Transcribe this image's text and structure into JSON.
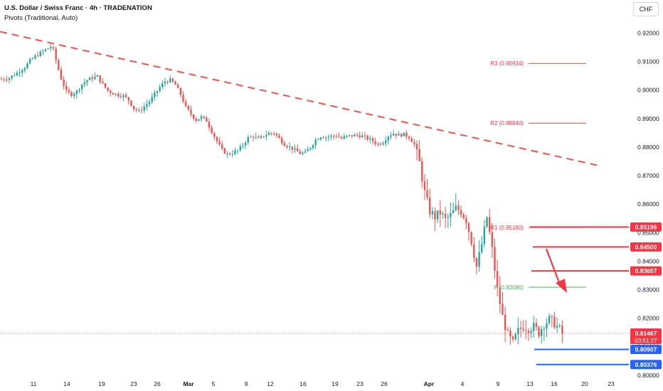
{
  "header": {
    "title": "U.S. Dollar / Swiss Franc · 4h · TRADENATION",
    "indicator": "Pivots (Traditional, Auto)",
    "currency": "CHF"
  },
  "colors": {
    "up": "#26a69a",
    "down": "#ef5350",
    "trendline": "#ef5350",
    "pivot_resistance": "#f23645",
    "pivot_main": "#4caf50",
    "support": "#2962ff",
    "resistance": "#f23645",
    "last_price": "#f23645",
    "axis_text": "#131722"
  },
  "chart_data": {
    "type": "candlestick",
    "y_axis": {
      "ticks": [
        "0.92000",
        "0.91000",
        "0.90000",
        "0.89000",
        "0.88000",
        "0.87000",
        "0.86000",
        "0.85000",
        "0.84000",
        "0.83000",
        "0.82000",
        "0.81000",
        "0.80000"
      ],
      "ylim": [
        0.79996,
        0.92311
      ]
    },
    "x_axis": {
      "labels": [
        "11",
        "14",
        "19",
        "23",
        "26",
        "Mar",
        "5",
        "9",
        "12",
        "16",
        "19",
        "23",
        "26",
        "Apr",
        "4",
        "9",
        "13",
        "16",
        "20",
        "23"
      ]
    },
    "pivot_levels": [
      {
        "label": "R3",
        "value": "0.90934"
      },
      {
        "label": "R2",
        "value": "0.88840"
      },
      {
        "label": "R1",
        "value": "0.85180"
      },
      {
        "label": "P",
        "value": "0.83086"
      }
    ],
    "price_labels": [
      {
        "value": "0.85196",
        "kind": "resistance"
      },
      {
        "value": "0.84500",
        "kind": "resistance"
      },
      {
        "value": "0.83657",
        "kind": "resistance"
      },
      {
        "value": "0.81467",
        "kind": "last"
      },
      {
        "value": "0.80907",
        "kind": "support"
      },
      {
        "value": "0.80376",
        "kind": "support"
      }
    ],
    "last_price": {
      "value": "0.81467",
      "countdown": "03:51:27"
    },
    "trendline": {
      "start": 0.9205,
      "end": 0.8736
    },
    "path": [
      [
        0,
        0.9038
      ],
      [
        3,
        0.9043
      ],
      [
        6,
        0.906
      ],
      [
        9,
        0.908
      ],
      [
        11,
        0.9103
      ],
      [
        13,
        0.9118
      ],
      [
        15,
        0.913
      ],
      [
        17,
        0.9142
      ],
      [
        19,
        0.9152
      ],
      [
        20,
        0.914
      ],
      [
        21,
        0.9105
      ],
      [
        23,
        0.904
      ],
      [
        25,
        0.8995
      ],
      [
        27,
        0.8985
      ],
      [
        29,
        0.8995
      ],
      [
        31,
        0.902
      ],
      [
        33,
        0.9035
      ],
      [
        35,
        0.9043
      ],
      [
        37,
        0.9048
      ],
      [
        39,
        0.902
      ],
      [
        41,
        0.8998
      ],
      [
        43,
        0.8988
      ],
      [
        45,
        0.8983
      ],
      [
        47,
        0.898
      ],
      [
        49,
        0.8965
      ],
      [
        51,
        0.8935
      ],
      [
        53,
        0.8925
      ],
      [
        55,
        0.8942
      ],
      [
        57,
        0.896
      ],
      [
        59,
        0.8985
      ],
      [
        61,
        0.901
      ],
      [
        63,
        0.903
      ],
      [
        65,
        0.9035
      ],
      [
        67,
        0.9018
      ],
      [
        69,
        0.8985
      ],
      [
        71,
        0.894
      ],
      [
        73,
        0.8915
      ],
      [
        75,
        0.8895
      ],
      [
        77,
        0.8905
      ],
      [
        79,
        0.8892
      ],
      [
        81,
        0.8855
      ],
      [
        83,
        0.882
      ],
      [
        85,
        0.879
      ],
      [
        87,
        0.8775
      ],
      [
        89,
        0.878
      ],
      [
        91,
        0.8788
      ],
      [
        93,
        0.8808
      ],
      [
        95,
        0.8832
      ],
      [
        97,
        0.8838
      ],
      [
        99,
        0.8828
      ],
      [
        101,
        0.884
      ],
      [
        103,
        0.8848
      ],
      [
        105,
        0.885
      ],
      [
        107,
        0.883
      ],
      [
        109,
        0.881
      ],
      [
        111,
        0.88
      ],
      [
        113,
        0.879
      ],
      [
        115,
        0.8778
      ],
      [
        117,
        0.878
      ],
      [
        119,
        0.88
      ],
      [
        121,
        0.8825
      ],
      [
        123,
        0.8838
      ],
      [
        125,
        0.8835
      ],
      [
        127,
        0.8838
      ],
      [
        129,
        0.884
      ],
      [
        131,
        0.883
      ],
      [
        133,
        0.8838
      ],
      [
        135,
        0.884
      ],
      [
        137,
        0.8842
      ],
      [
        139,
        0.8838
      ],
      [
        141,
        0.883
      ],
      [
        143,
        0.8822
      ],
      [
        145,
        0.881
      ],
      [
        147,
        0.8818
      ],
      [
        149,
        0.884
      ],
      [
        151,
        0.8848
      ],
      [
        153,
        0.8842
      ],
      [
        155,
        0.8845
      ],
      [
        157,
        0.8835
      ],
      [
        159,
        0.881
      ],
      [
        161,
        0.8745
      ],
      [
        163,
        0.864
      ],
      [
        165,
        0.8575
      ],
      [
        167,
        0.8555
      ],
      [
        169,
        0.857
      ],
      [
        171,
        0.8545
      ],
      [
        173,
        0.856
      ],
      [
        175,
        0.8585
      ],
      [
        177,
        0.8575
      ],
      [
        179,
        0.8545
      ],
      [
        181,
        0.847
      ],
      [
        183,
        0.838
      ],
      [
        185,
        0.846
      ],
      [
        187,
        0.8555
      ],
      [
        189,
        0.844
      ],
      [
        191,
        0.83
      ],
      [
        193,
        0.8205
      ],
      [
        195,
        0.814
      ],
      [
        197,
        0.8112
      ],
      [
        199,
        0.8155
      ],
      [
        201,
        0.8172
      ],
      [
        203,
        0.8165
      ],
      [
        205,
        0.817
      ],
      [
        207,
        0.815
      ],
      [
        209,
        0.818
      ],
      [
        211,
        0.8195
      ],
      [
        213,
        0.8182
      ],
      [
        215,
        0.816
      ],
      [
        216,
        0.8147
      ]
    ]
  }
}
